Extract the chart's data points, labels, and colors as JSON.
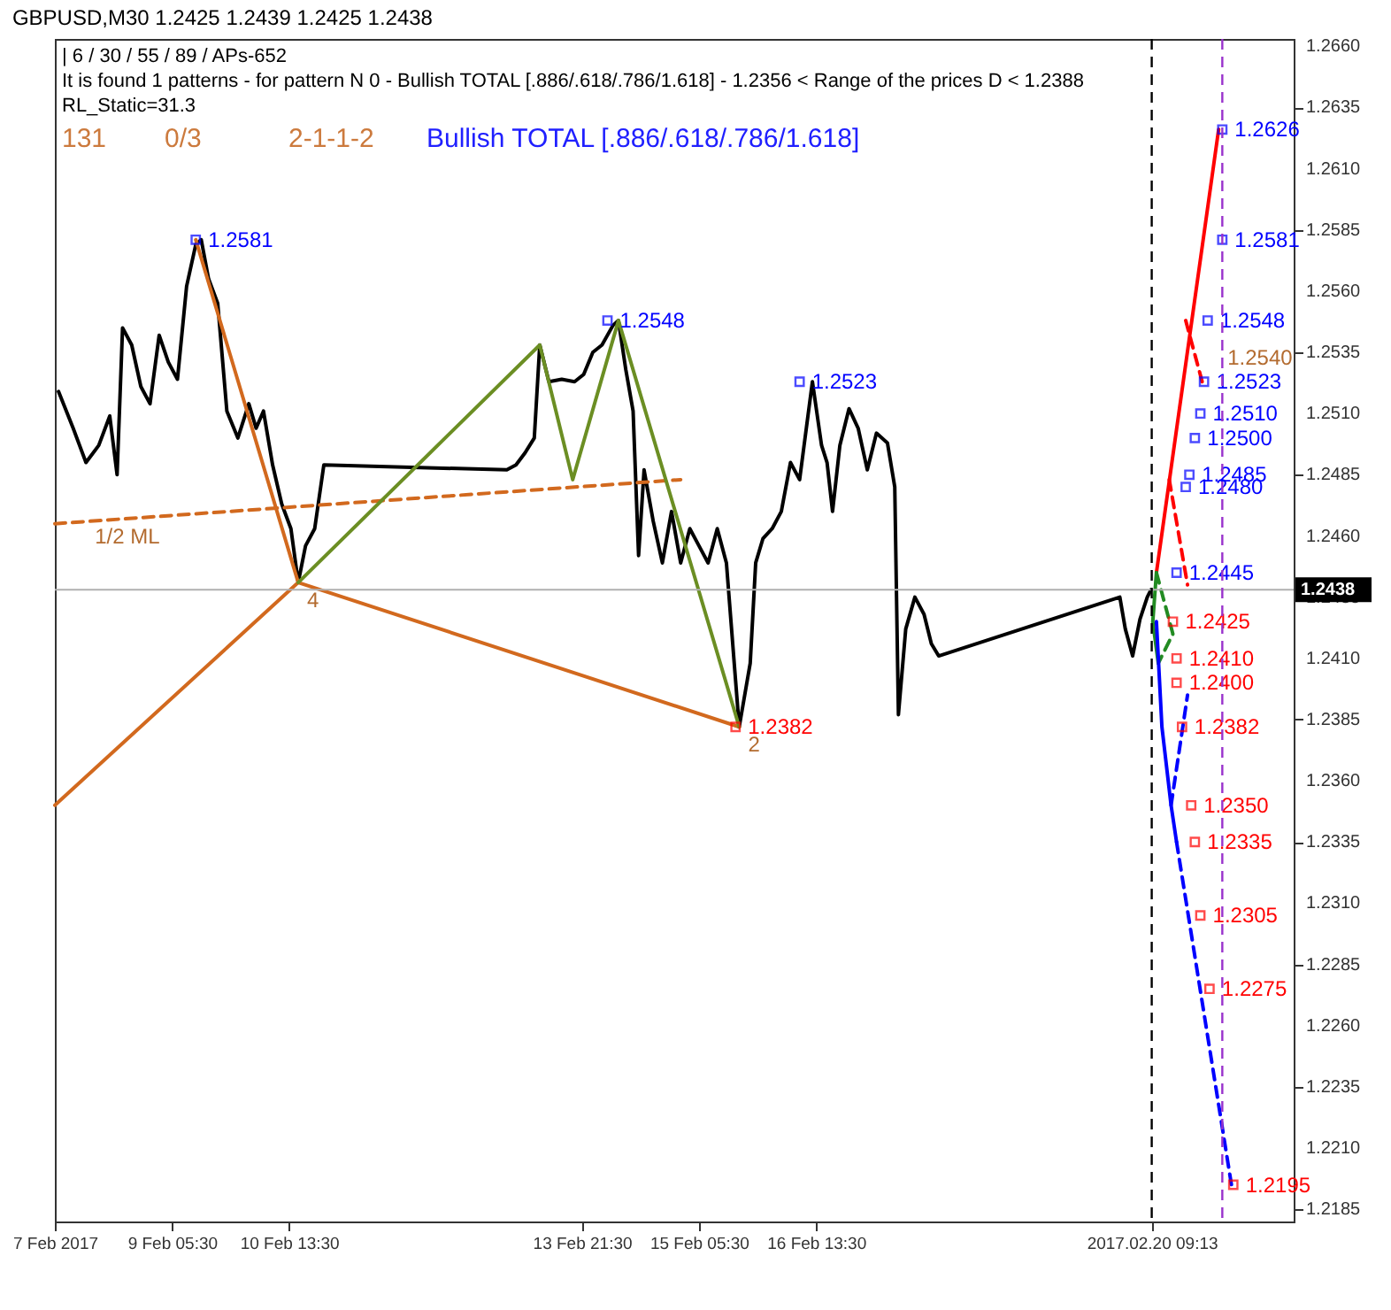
{
  "chart_data": {
    "type": "line",
    "title": "GBPUSD,M30  1.2425 1.2439 1.2425 1.2438",
    "annotations": [
      "| 6 / 30 / 55 / 89 / APs-652",
      "It is found 1 patterns  -  for pattern N 0 - Bullish TOTAL [.886/.618/.786/1.618] - 1.2356 < Range of the prices D < 1.2388",
      "RL_Static=31.3",
      "131",
      "0/3",
      "2-1-1-2",
      "Bullish TOTAL [.886/.618/.786/1.618]",
      {
        "text": "1/2 ML",
        "x": "2017-02-08T06:00",
        "y": 1.2467
      },
      {
        "text": "1.2540",
        "x": "2017-02-21T03:30",
        "y": 1.254
      },
      {
        "text": "4",
        "x": "2017-02-10T16:00",
        "y": 1.2441
      },
      {
        "text": "2",
        "x": "2017-02-15T16:30",
        "y": 1.2382
      }
    ],
    "xlim": [
      "2017-02-07T21:30",
      "2017-02-22T00:00"
    ],
    "xticks": [
      {
        "value": "2017-02-07T21:30",
        "label": "7 Feb 2017"
      },
      {
        "value": "2017-02-09T05:30",
        "label": "9 Feb 05:30"
      },
      {
        "value": "2017-02-10T13:30",
        "label": "10 Feb 13:30"
      },
      {
        "value": "2017-02-13T21:30",
        "label": "13 Feb 21:30"
      },
      {
        "value": "2017-02-15T05:30",
        "label": "15 Feb 05:30"
      },
      {
        "value": "2017-02-16T13:30",
        "label": "16 Feb 13:30"
      },
      {
        "value": "2017-02-20T09:13",
        "label": "2017.02.20 09:13"
      }
    ],
    "ylim": [
      1.218,
      1.2663
    ],
    "yticks": [
      1.2185,
      {
        "value": 1.221,
        "label": "1.2210"
      },
      1.2235,
      {
        "value": 1.226,
        "label": "1.2260"
      },
      1.2285,
      {
        "value": 1.231,
        "label": "1.2310"
      },
      1.2335,
      {
        "value": 1.236,
        "label": "1.2360"
      },
      1.2385,
      {
        "value": 1.241,
        "label": "1.2410"
      },
      1.2435,
      {
        "value": 1.246,
        "label": "1.2460"
      },
      1.2485,
      {
        "value": 1.251,
        "label": "1.2510"
      },
      1.2535,
      {
        "value": 1.256,
        "label": "1.2560"
      },
      1.2585,
      {
        "value": 1.261,
        "label": "1.2610"
      },
      1.2635,
      {
        "value": 1.266,
        "label": "1.2660"
      }
    ],
    "ref_lines": [
      {
        "axis": "y",
        "value": 1.2438,
        "label": "1.2438",
        "color": "#b0b0b0"
      },
      {
        "axis": "x",
        "value": "2017-02-20T09:13",
        "color": "#000000",
        "line_style": "dashed"
      },
      {
        "axis": "x",
        "value": "2017-02-21T04:30",
        "color": "#9932cc",
        "line_style": "dashed"
      }
    ],
    "series": [
      {
        "color": "#000000",
        "x": [
          "2017-02-07T22:30",
          "2017-02-08T02:30",
          "2017-02-08T06:00",
          "2017-02-08T09:30",
          "2017-02-08T12:30",
          "2017-02-08T14:30",
          "2017-02-08T16:00",
          "2017-02-08T18:30",
          "2017-02-08T21:00",
          "2017-02-08T23:30",
          "2017-02-09T02:00",
          "2017-02-09T04:30",
          "2017-02-09T07:00",
          "2017-02-09T09:30",
          "2017-02-09T12:00",
          "2017-02-09T13:30",
          "2017-02-09T15:30",
          "2017-02-09T18:00",
          "2017-02-09T20:30",
          "2017-02-09T23:30",
          "2017-02-10T02:30",
          "2017-02-10T04:30",
          "2017-02-10T06:30",
          "2017-02-10T09:00",
          "2017-02-10T11:30",
          "2017-02-10T14:00",
          "2017-02-10T16:00",
          "2017-02-10T18:00",
          "2017-02-10T20:30",
          "2017-02-10T23:00",
          "2017-02-13T01:00",
          "2017-02-13T03:30",
          "2017-02-13T06:00",
          "2017-02-13T08:30",
          "2017-02-13T10:00",
          "2017-02-13T12:30",
          "2017-02-13T16:00",
          "2017-02-13T19:30",
          "2017-02-13T22:00",
          "2017-02-14T00:30",
          "2017-02-14T03:00",
          "2017-02-14T06:00",
          "2017-02-14T07:30",
          "2017-02-14T09:30",
          "2017-02-14T11:30",
          "2017-02-14T13:00",
          "2017-02-14T14:30",
          "2017-02-14T17:00",
          "2017-02-14T19:30",
          "2017-02-14T22:00",
          "2017-02-15T00:30",
          "2017-02-15T03:00",
          "2017-02-15T05:30",
          "2017-02-15T08:00",
          "2017-02-15T10:30",
          "2017-02-15T13:00",
          "2017-02-15T15:30",
          "2017-02-15T16:30",
          "2017-02-15T19:30",
          "2017-02-15T21:00",
          "2017-02-15T23:00",
          "2017-02-16T01:30",
          "2017-02-16T04:00",
          "2017-02-16T06:30",
          "2017-02-16T09:00",
          "2017-02-16T12:30",
          "2017-02-16T15:00",
          "2017-02-16T16:30",
          "2017-02-16T18:00",
          "2017-02-16T20:00",
          "2017-02-16T22:30",
          "2017-02-17T01:00",
          "2017-02-17T03:30",
          "2017-02-17T06:00",
          "2017-02-17T09:00",
          "2017-02-17T11:00",
          "2017-02-17T12:00",
          "2017-02-17T14:00",
          "2017-02-17T16:30",
          "2017-02-17T19:00",
          "2017-02-17T21:00",
          "2017-02-17T23:00",
          "2017-02-20T00:30",
          "2017-02-20T02:00",
          "2017-02-20T04:00",
          "2017-02-20T06:00",
          "2017-02-20T08:00",
          "2017-02-20T09:00"
        ],
        "values": [
          1.2519,
          1.2504,
          1.249,
          1.2497,
          1.2509,
          1.2485,
          1.2545,
          1.2538,
          1.2521,
          1.2514,
          1.2542,
          1.2531,
          1.2524,
          1.2562,
          1.2579,
          1.2581,
          1.2565,
          1.2555,
          1.2511,
          1.25,
          1.2514,
          1.2504,
          1.2511,
          1.2489,
          1.2473,
          1.2463,
          1.2441,
          1.2456,
          1.2463,
          1.2489,
          1.2487,
          1.2489,
          1.2494,
          1.25,
          1.2538,
          1.2523,
          1.2524,
          1.2523,
          1.2526,
          1.2535,
          1.2538,
          1.2546,
          1.2548,
          1.2528,
          1.2511,
          1.2452,
          1.2487,
          1.2466,
          1.2449,
          1.247,
          1.2449,
          1.2463,
          1.2456,
          1.2449,
          1.2463,
          1.2449,
          1.2401,
          1.2382,
          1.2408,
          1.2449,
          1.2459,
          1.2463,
          1.247,
          1.249,
          1.2483,
          1.2523,
          1.2497,
          1.249,
          1.247,
          1.2497,
          1.2512,
          1.2504,
          1.2487,
          1.2502,
          1.2498,
          1.248,
          1.2387,
          1.2422,
          1.2435,
          1.2428,
          1.2416,
          1.2411,
          1.2435,
          1.2422,
          1.2411,
          1.2426,
          1.2435,
          1.2438
        ]
      },
      {
        "color": "#d2691e",
        "x": [
          "2017-02-07T21:30",
          "2017-02-10T16:00",
          "2017-02-09T12:00",
          "2017-02-10T16:00",
          "2017-02-15T16:30"
        ],
        "values": [
          1.235,
          1.2441,
          1.2581,
          1.2441,
          1.2382
        ]
      },
      {
        "color": "#d2691e",
        "line_style": "dashed",
        "x": [
          "2017-02-07T21:30",
          "2017-02-15T00:30"
        ],
        "values": [
          1.2465,
          1.2483
        ]
      },
      {
        "color": "#6b8e23",
        "x": [
          "2017-02-10T16:00",
          "2017-02-13T10:00",
          "2017-02-13T19:00",
          "2017-02-14T07:30",
          "2017-02-15T16:30"
        ],
        "values": [
          1.2441,
          1.2538,
          1.2483,
          1.2548,
          1.2382
        ]
      },
      {
        "color": "#ff0000",
        "x": [
          "2017-02-20T10:30",
          "2017-02-21T03:30"
        ],
        "values": [
          1.2445,
          1.2626
        ]
      },
      {
        "color": "#ff0000",
        "line_style": "dashed",
        "x": [
          "2017-02-20T18:30",
          "2017-02-20T23:00"
        ],
        "values": [
          1.2548,
          1.2523
        ]
      },
      {
        "color": "#ff0000",
        "line_style": "dashed",
        "x": [
          "2017-02-20T14:00",
          "2017-02-20T19:00"
        ],
        "values": [
          1.2483,
          1.244
        ]
      },
      {
        "color": "#228b22",
        "x": [
          "2017-02-20T10:30",
          "2017-02-20T09:30",
          "2017-02-20T11:00"
        ],
        "values": [
          1.2445,
          1.2425,
          1.2408
        ]
      },
      {
        "color": "#228b22",
        "line_style": "dashed",
        "x": [
          "2017-02-20T10:30",
          "2017-02-20T15:00",
          "2017-02-20T11:00"
        ],
        "values": [
          1.2445,
          1.242,
          1.2408
        ]
      },
      {
        "color": "#0000ff",
        "x": [
          "2017-02-20T10:30",
          "2017-02-20T12:00",
          "2017-02-20T14:30",
          "2017-02-20T16:00"
        ],
        "values": [
          1.2425,
          1.2382,
          1.235,
          1.2335
        ]
      },
      {
        "color": "#0000ff",
        "line_style": "dashed",
        "x": [
          "2017-02-20T16:00",
          "2017-02-21T07:00"
        ],
        "values": [
          1.2335,
          1.2195
        ]
      },
      {
        "color": "#0000ff",
        "line_style": "dashed",
        "x": [
          "2017-02-20T14:30",
          "2017-02-20T19:00"
        ],
        "values": [
          1.235,
          1.2395
        ]
      },
      {
        "type": "scatter",
        "color": "#0000ff",
        "marker": "square",
        "x": [
          "2017-02-09T12:00",
          "2017-02-14T04:30",
          "2017-02-16T09:00",
          "2017-02-21T04:30",
          "2017-02-21T04:30",
          "2017-02-21T00:30",
          "2017-02-20T23:30",
          "2017-02-20T22:30",
          "2017-02-20T21:00",
          "2017-02-20T19:30",
          "2017-02-20T18:30",
          "2017-02-20T16:00"
        ],
        "values": [
          1.2581,
          1.2548,
          1.2523,
          1.2626,
          1.2581,
          1.2548,
          1.2523,
          1.251,
          1.25,
          1.2485,
          1.248,
          1.2445
        ],
        "value_labels": [
          "1.2581",
          "1.2548",
          "1.2523",
          "1.2626",
          "1.2581",
          "1.2548",
          "1.2523",
          "1.2510",
          "1.2500",
          "1.2485",
          "1.2480",
          "1.2445"
        ]
      },
      {
        "type": "scatter",
        "color": "#ff0000",
        "marker": "square",
        "x": [
          "2017-02-15T15:30",
          "2017-02-20T15:00",
          "2017-02-20T16:00",
          "2017-02-20T16:00",
          "2017-02-20T17:30",
          "2017-02-20T20:00",
          "2017-02-20T21:00",
          "2017-02-20T22:30",
          "2017-02-21T01:00",
          "2017-02-21T07:30"
        ],
        "values": [
          1.2382,
          1.2425,
          1.241,
          1.24,
          1.2382,
          1.235,
          1.2335,
          1.2305,
          1.2275,
          1.2195
        ],
        "value_labels": [
          "1.2382",
          "1.2425",
          "1.2410",
          "1.2400",
          "1.2382",
          "1.2350",
          "1.2335",
          "1.2305",
          "1.2275",
          "1.2195"
        ]
      }
    ]
  }
}
